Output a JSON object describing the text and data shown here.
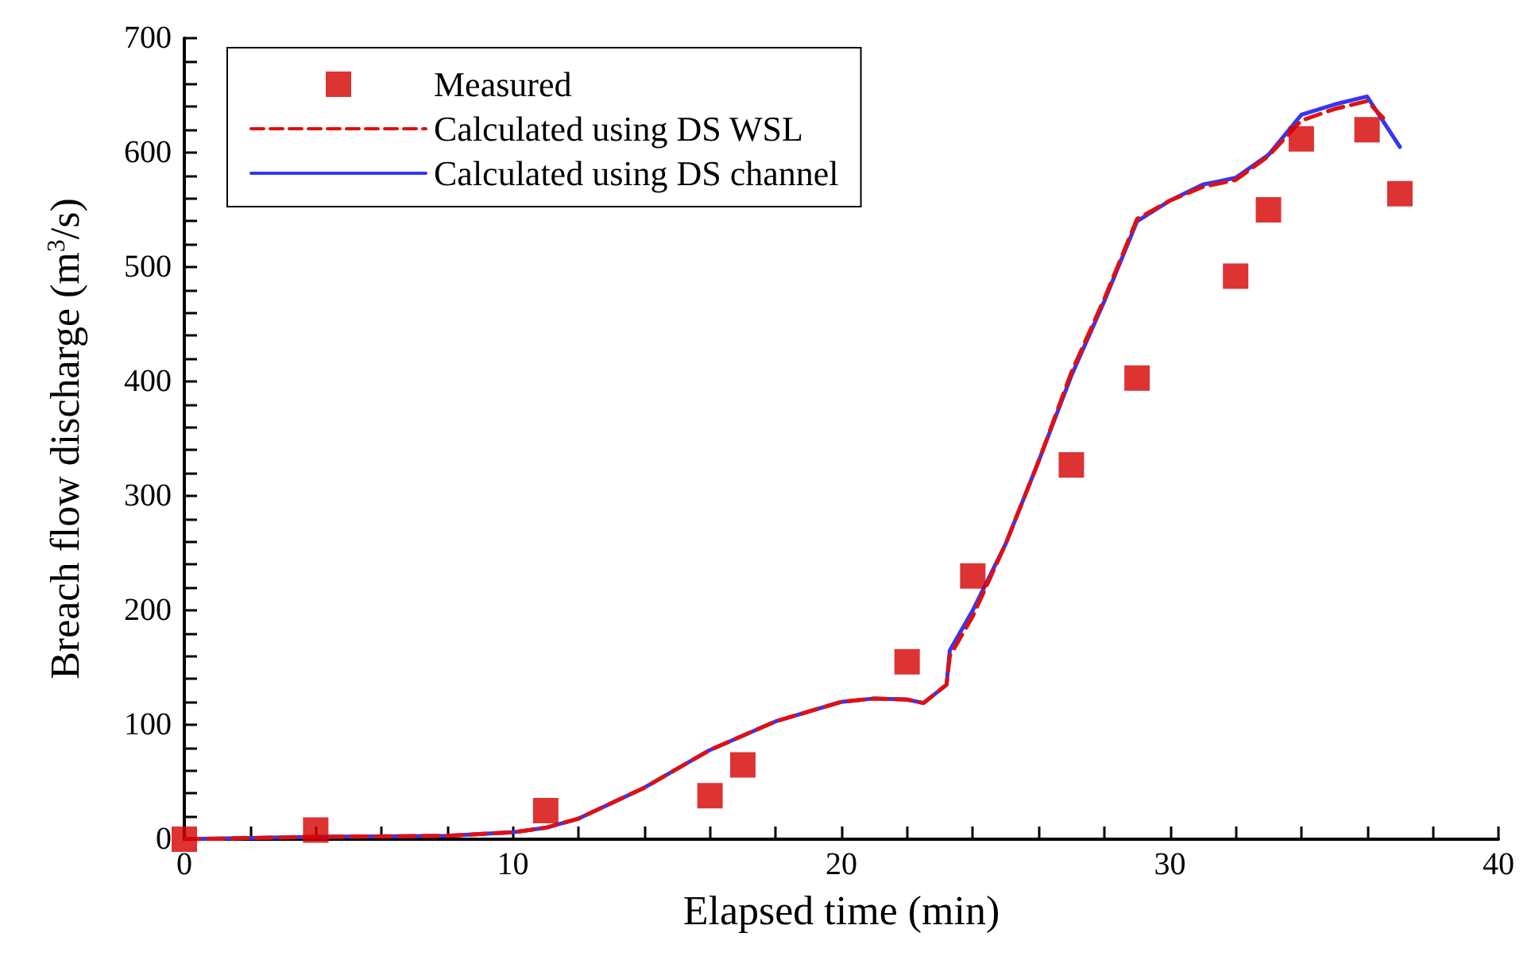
{
  "chart_data": {
    "type": "line",
    "xlabel": "Elapsed time (min)",
    "ylabel": "Breach flow discharge (m$^{3}$/s)",
    "xlim": [
      0,
      40
    ],
    "ylim": [
      0,
      700
    ],
    "xticks": [
      0,
      {
        "value": 2,
        "label": null
      },
      {
        "value": 4,
        "label": null
      },
      {
        "value": 6,
        "label": null
      },
      {
        "value": 8,
        "label": null
      },
      10,
      {
        "value": 12,
        "label": null
      },
      {
        "value": 14,
        "label": null
      },
      {
        "value": 16,
        "label": null
      },
      {
        "value": 18,
        "label": null
      },
      20,
      {
        "value": 22,
        "label": null
      },
      {
        "value": 24,
        "label": null
      },
      {
        "value": 26,
        "label": null
      },
      {
        "value": 28,
        "label": null
      },
      30,
      {
        "value": 32,
        "label": null
      },
      {
        "value": 34,
        "label": null
      },
      {
        "value": 36,
        "label": null
      },
      {
        "value": 38,
        "label": null
      },
      40
    ],
    "yticks": [
      0,
      {
        "value": 20,
        "label": null
      },
      {
        "value": 40,
        "label": null
      },
      {
        "value": 60,
        "label": null
      },
      {
        "value": 80,
        "label": null
      },
      100,
      {
        "value": 120,
        "label": null
      },
      {
        "value": 140,
        "label": null
      },
      {
        "value": 160,
        "label": null
      },
      {
        "value": 180,
        "label": null
      },
      200,
      {
        "value": 220,
        "label": null
      },
      {
        "value": 240,
        "label": null
      },
      {
        "value": 260,
        "label": null
      },
      {
        "value": 280,
        "label": null
      },
      300,
      {
        "value": 320,
        "label": null
      },
      {
        "value": 340,
        "label": null
      },
      {
        "value": 360,
        "label": null
      },
      {
        "value": 380,
        "label": null
      },
      400,
      {
        "value": 420,
        "label": null
      },
      {
        "value": 440,
        "label": null
      },
      {
        "value": 460,
        "label": null
      },
      {
        "value": 480,
        "label": null
      },
      500,
      {
        "value": 520,
        "label": null
      },
      {
        "value": 540,
        "label": null
      },
      {
        "value": 560,
        "label": null
      },
      {
        "value": 580,
        "label": null
      },
      600,
      {
        "value": 620,
        "label": null
      },
      {
        "value": 640,
        "label": null
      },
      {
        "value": 660,
        "label": null
      },
      {
        "value": 680,
        "label": null
      },
      700
    ],
    "grid": false,
    "legend": "top left",
    "series": [
      {
        "name": "Measured",
        "type": "scatter",
        "marker": "square",
        "color": "#d40000",
        "x": [
          0,
          4,
          11,
          16,
          17,
          22,
          24,
          27,
          29,
          32,
          33,
          34,
          36,
          37
        ],
        "values": [
          0,
          8,
          25,
          38,
          65,
          155,
          230,
          327,
          403,
          492,
          550,
          612,
          620,
          564
        ]
      },
      {
        "name": "Calculated using DS WSL",
        "type": "line",
        "line_style": "dashed",
        "marker": "none",
        "color": "#e01010",
        "x": [
          0,
          4,
          8,
          10,
          11,
          12,
          14,
          16,
          18,
          20,
          21,
          22,
          22.5,
          23.2,
          23.3,
          24,
          25,
          26,
          27,
          28,
          29,
          30,
          31,
          32,
          33,
          34,
          35,
          36,
          36.5
        ],
        "values": [
          0,
          2,
          3,
          6,
          10,
          18,
          45,
          78,
          103,
          120,
          123,
          122,
          119,
          135,
          160,
          195,
          258,
          330,
          408,
          472,
          542,
          558,
          570,
          576,
          597,
          628,
          638,
          645,
          630
        ]
      },
      {
        "name": "Calculated using DS channel",
        "type": "line",
        "line_style": "solid",
        "marker": "none",
        "color": "#3535f5",
        "x": [
          0,
          4,
          8,
          10,
          11,
          12,
          14,
          16,
          18,
          20,
          21,
          22,
          22.5,
          23.2,
          23.3,
          24,
          25,
          26,
          27,
          28,
          29,
          30,
          31,
          32,
          33,
          34,
          35,
          36,
          37
        ],
        "values": [
          0,
          2,
          3,
          6,
          10,
          18,
          45,
          78,
          103,
          120,
          123,
          122,
          119,
          135,
          165,
          200,
          258,
          330,
          405,
          470,
          540,
          558,
          572,
          578,
          598,
          633,
          642,
          649,
          605
        ]
      }
    ]
  }
}
